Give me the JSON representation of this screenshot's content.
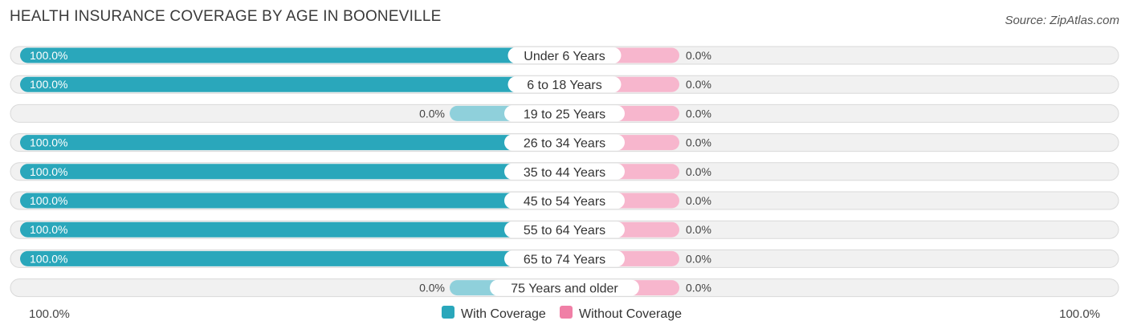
{
  "header": {
    "title": "HEALTH INSURANCE COVERAGE BY AGE IN BOONEVILLE",
    "source": "Source: ZipAtlas.com"
  },
  "chart_data": {
    "type": "bar",
    "orientation": "horizontal-diverging",
    "categories": [
      "Under 6 Years",
      "6 to 18 Years",
      "19 to 25 Years",
      "26 to 34 Years",
      "35 to 44 Years",
      "45 to 54 Years",
      "55 to 64 Years",
      "65 to 74 Years",
      "75 Years and older"
    ],
    "series": [
      {
        "name": "With Coverage",
        "color": "#2aa7bb",
        "light_color": "#8fd0db",
        "values": [
          100,
          100,
          0,
          100,
          100,
          100,
          100,
          100,
          0
        ],
        "labels": [
          "100.0%",
          "100.0%",
          "0.0%",
          "100.0%",
          "100.0%",
          "100.0%",
          "100.0%",
          "100.0%",
          "0.0%"
        ]
      },
      {
        "name": "Without Coverage",
        "color": "#f07fa6",
        "light_color": "#f7b6cd",
        "values": [
          0,
          0,
          0,
          0,
          0,
          0,
          0,
          0,
          0
        ],
        "labels": [
          "0.0%",
          "0.0%",
          "0.0%",
          "0.0%",
          "0.0%",
          "0.0%",
          "0.0%",
          "0.0%",
          "0.0%"
        ]
      }
    ],
    "xlim": [
      0,
      100
    ],
    "axis_left_label": "100.0%",
    "axis_right_label": "100.0%",
    "legend_position": "bottom-center"
  }
}
